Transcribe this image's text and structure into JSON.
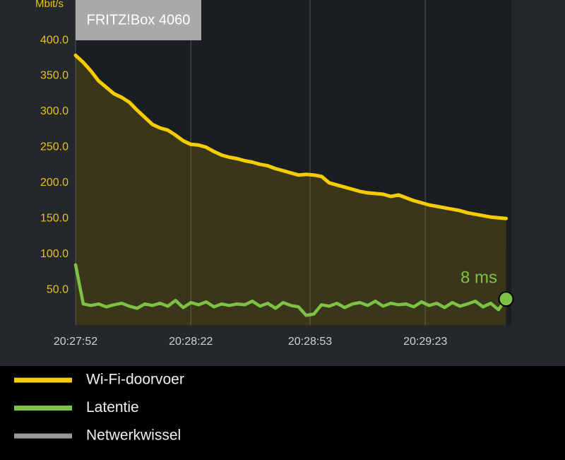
{
  "chart_data": {
    "type": "line",
    "title": "FRITZ!Box 4060",
    "y_label": "Mbit/s",
    "annotation": "8 ms",
    "x": [
      "20:27:52",
      "20:27:54",
      "20:27:56",
      "20:27:58",
      "20:28:00",
      "20:28:02",
      "20:28:04",
      "20:28:06",
      "20:28:08",
      "20:28:10",
      "20:28:12",
      "20:28:14",
      "20:28:16",
      "20:28:18",
      "20:28:20",
      "20:28:22",
      "20:28:24",
      "20:28:26",
      "20:28:28",
      "20:28:30",
      "20:28:32",
      "20:28:34",
      "20:28:36",
      "20:28:38",
      "20:28:40",
      "20:28:42",
      "20:28:44",
      "20:28:46",
      "20:28:48",
      "20:28:50",
      "20:28:52",
      "20:28:54",
      "20:28:56",
      "20:28:58",
      "20:29:00",
      "20:29:02",
      "20:29:04",
      "20:29:06",
      "20:29:08",
      "20:29:10",
      "20:29:12",
      "20:29:14",
      "20:29:16",
      "20:29:18",
      "20:29:20",
      "20:29:22",
      "20:29:24",
      "20:29:26",
      "20:29:28",
      "20:29:30",
      "20:29:32",
      "20:29:34",
      "20:29:36",
      "20:29:38",
      "20:29:40",
      "20:29:42",
      "20:29:44"
    ],
    "series": [
      {
        "name": "Wi-Fi-doorvoer",
        "color": "#f5cc00",
        "values": [
          379,
          369,
          357,
          343,
          334,
          325,
          320,
          313,
          302,
          292,
          282,
          277,
          274,
          267,
          259,
          254,
          253,
          250,
          244,
          239,
          236,
          234,
          231,
          229,
          226,
          224,
          220,
          217,
          214,
          211,
          212,
          211,
          209,
          200,
          197,
          194,
          191,
          188,
          186,
          185,
          184,
          181,
          183,
          179,
          175,
          172,
          169,
          167,
          165,
          163,
          161,
          158,
          156,
          154,
          152,
          151,
          150
        ]
      },
      {
        "name": "Latentie",
        "color": "#7dc242",
        "values": [
          85,
          30,
          28,
          30,
          26,
          29,
          31,
          27,
          24,
          30,
          28,
          31,
          27,
          35,
          25,
          32,
          29,
          33,
          26,
          30,
          28,
          30,
          29,
          34,
          27,
          31,
          24,
          32,
          28,
          26,
          14,
          16,
          29,
          27,
          31,
          25,
          30,
          32,
          28,
          34,
          27,
          31,
          29,
          30,
          26,
          33,
          28,
          31,
          25,
          32,
          27,
          30,
          34,
          26,
          31,
          22,
          37
        ]
      },
      {
        "name": "Netwerkwissel",
        "color": "#9a9a9a",
        "values": [
          null,
          null,
          null,
          null,
          null,
          null,
          null,
          null,
          null,
          null,
          null,
          null,
          null,
          null,
          null,
          null,
          null,
          null,
          null,
          null,
          null,
          null,
          null,
          null,
          null,
          null,
          null,
          null,
          null,
          null,
          null,
          null,
          null,
          null,
          null,
          null,
          null,
          null,
          null,
          null,
          null,
          null,
          null,
          null,
          null,
          null,
          null,
          null,
          null,
          null,
          null,
          null,
          null,
          null,
          null,
          null,
          null
        ]
      }
    ],
    "xlim": [
      "20:27:52",
      "20:29:45"
    ],
    "xticks": [
      "20:27:52",
      "20:28:22",
      "20:28:53",
      "20:29:23"
    ],
    "ylim": [
      0,
      456.6
    ],
    "yticks": [
      {
        "value": 50,
        "label": "50.0"
      },
      {
        "value": 100,
        "label": "100.0"
      },
      {
        "value": 150,
        "label": "150.0"
      },
      {
        "value": 200,
        "label": "200.0"
      },
      {
        "value": 250,
        "label": "250.0"
      },
      {
        "value": 300,
        "label": "300.0"
      },
      {
        "value": 350,
        "label": "350.0"
      },
      {
        "value": 400,
        "label": "400.0"
      }
    ],
    "grid": true
  }
}
